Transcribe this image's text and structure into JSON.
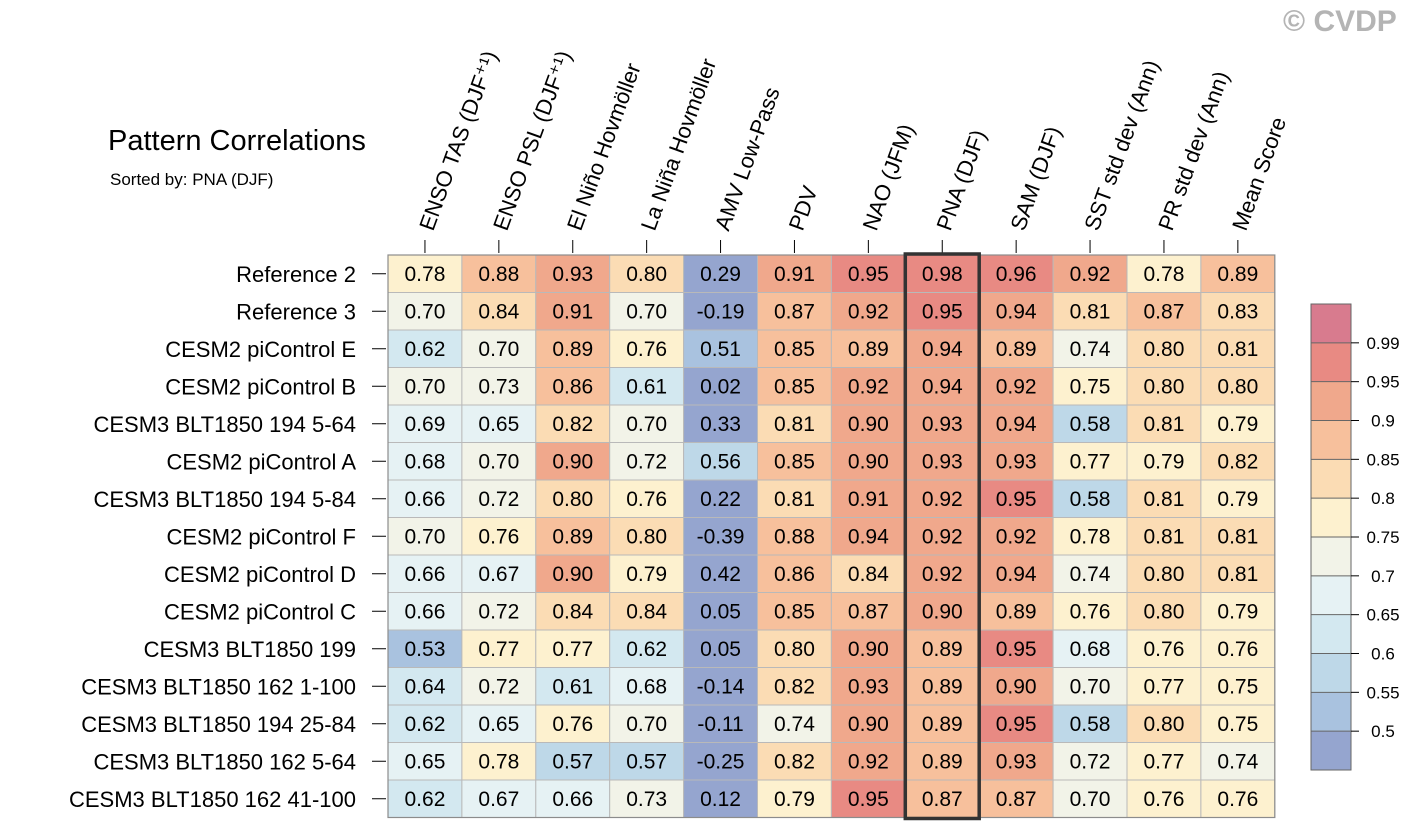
{
  "copyright": "© CVDP",
  "chart_data": {
    "type": "heatmap",
    "title": "Pattern Correlations",
    "subtitle": "Sorted by: PNA (DJF)",
    "highlight_column": "PNA (DJF)",
    "columns": [
      "ENSO TAS (DJF⁺¹)",
      "ENSO PSL (DJF⁺¹)",
      "El Niño Hovmöller",
      "La Niña Hovmöller",
      "AMV Low-Pass",
      "PDV",
      "NAO (JFM)",
      "PNA (DJF)",
      "SAM (DJF)",
      "SST std dev (Ann)",
      "PR std dev (Ann)",
      "Mean Score"
    ],
    "rows": [
      "Reference 2",
      "Reference 3",
      "CESM2 piControl E",
      "CESM2 piControl B",
      "CESM3 BLT1850 194 5-64",
      "CESM2 piControl A",
      "CESM3 BLT1850 194 5-84",
      "CESM2 piControl F",
      "CESM2 piControl D",
      "CESM2 piControl C",
      "CESM3 BLT1850 199",
      "CESM3 BLT1850 162 1-100",
      "CESM3 BLT1850 194 25-84",
      "CESM3 BLT1850 162 5-64",
      "CESM3 BLT1850 162 41-100"
    ],
    "values": [
      [
        "0.78",
        "0.88",
        "0.93",
        "0.80",
        "0.29",
        "0.91",
        "0.95",
        "0.98",
        "0.96",
        "0.92",
        "0.78",
        "0.89"
      ],
      [
        "0.70",
        "0.84",
        "0.91",
        "0.70",
        "-0.19",
        "0.87",
        "0.92",
        "0.95",
        "0.94",
        "0.81",
        "0.87",
        "0.83"
      ],
      [
        "0.62",
        "0.70",
        "0.89",
        "0.76",
        "0.51",
        "0.85",
        "0.89",
        "0.94",
        "0.89",
        "0.74",
        "0.80",
        "0.81"
      ],
      [
        "0.70",
        "0.73",
        "0.86",
        "0.61",
        "0.02",
        "0.85",
        "0.92",
        "0.94",
        "0.92",
        "0.75",
        "0.80",
        "0.80"
      ],
      [
        "0.69",
        "0.65",
        "0.82",
        "0.70",
        "0.33",
        "0.81",
        "0.90",
        "0.93",
        "0.94",
        "0.58",
        "0.81",
        "0.79"
      ],
      [
        "0.68",
        "0.70",
        "0.90",
        "0.72",
        "0.56",
        "0.85",
        "0.90",
        "0.93",
        "0.93",
        "0.77",
        "0.79",
        "0.82"
      ],
      [
        "0.66",
        "0.72",
        "0.80",
        "0.76",
        "0.22",
        "0.81",
        "0.91",
        "0.92",
        "0.95",
        "0.58",
        "0.81",
        "0.79"
      ],
      [
        "0.70",
        "0.76",
        "0.89",
        "0.80",
        "-0.39",
        "0.88",
        "0.94",
        "0.92",
        "0.92",
        "0.78",
        "0.81",
        "0.81"
      ],
      [
        "0.66",
        "0.67",
        "0.90",
        "0.79",
        "0.42",
        "0.86",
        "0.84",
        "0.92",
        "0.94",
        "0.74",
        "0.80",
        "0.81"
      ],
      [
        "0.66",
        "0.72",
        "0.84",
        "0.84",
        "0.05",
        "0.85",
        "0.87",
        "0.90",
        "0.89",
        "0.76",
        "0.80",
        "0.79"
      ],
      [
        "0.53",
        "0.77",
        "0.77",
        "0.62",
        "0.05",
        "0.80",
        "0.90",
        "0.89",
        "0.95",
        "0.68",
        "0.76",
        "0.76"
      ],
      [
        "0.64",
        "0.72",
        "0.61",
        "0.68",
        "-0.14",
        "0.82",
        "0.93",
        "0.89",
        "0.90",
        "0.70",
        "0.77",
        "0.75"
      ],
      [
        "0.62",
        "0.65",
        "0.76",
        "0.70",
        "-0.11",
        "0.74",
        "0.90",
        "0.89",
        "0.95",
        "0.58",
        "0.80",
        "0.75"
      ],
      [
        "0.65",
        "0.78",
        "0.57",
        "0.57",
        "-0.25",
        "0.82",
        "0.92",
        "0.89",
        "0.93",
        "0.72",
        "0.77",
        "0.74"
      ],
      [
        "0.62",
        "0.67",
        "0.66",
        "0.73",
        "0.12",
        "0.79",
        "0.95",
        "0.87",
        "0.87",
        "0.70",
        "0.76",
        "0.76"
      ]
    ],
    "colorbar": {
      "levels": [
        "0.99",
        "0.95",
        "0.9",
        "0.85",
        "0.8",
        "0.75",
        "0.7",
        "0.65",
        "0.6",
        "0.55",
        "0.5"
      ],
      "thresholds": [
        0.5,
        0.55,
        0.6,
        0.65,
        0.7,
        0.75,
        0.8,
        0.85,
        0.9,
        0.95,
        0.99
      ],
      "colors": [
        "#95a5cf",
        "#a9c2df",
        "#bed8e8",
        "#d3e8f0",
        "#e6f2f4",
        "#f2f3e8",
        "#fdf1cf",
        "#fbdcb4",
        "#f7c09c",
        "#f0a88c",
        "#e88a83",
        "#d87b8e"
      ]
    }
  }
}
